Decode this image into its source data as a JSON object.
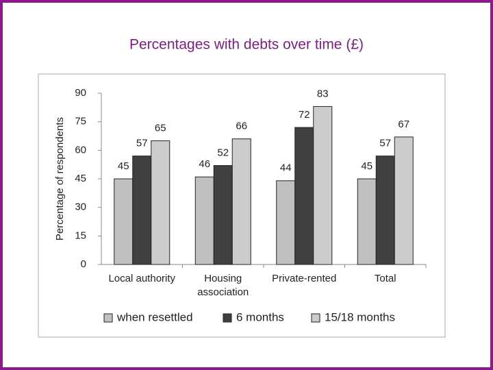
{
  "chart_data": {
    "type": "bar",
    "title": "Percentages with debts over time (£)",
    "y_label": "Percentage of respondents",
    "categories": [
      "Local authority",
      "Housing association",
      "Private-rented",
      "Total"
    ],
    "series": [
      {
        "name": "when resettled",
        "color": "#c0c0c0",
        "values": [
          45,
          46,
          44,
          45
        ]
      },
      {
        "name": "6 months",
        "color": "#404040",
        "values": [
          57,
          52,
          72,
          57
        ]
      },
      {
        "name": "15/18 months",
        "color": "#cccccc",
        "values": [
          65,
          66,
          83,
          67
        ]
      }
    ],
    "ylim": [
      0,
      90
    ],
    "yticks": [
      0,
      15,
      30,
      45,
      60,
      75,
      90
    ],
    "grid": false,
    "legend": "bottom"
  }
}
